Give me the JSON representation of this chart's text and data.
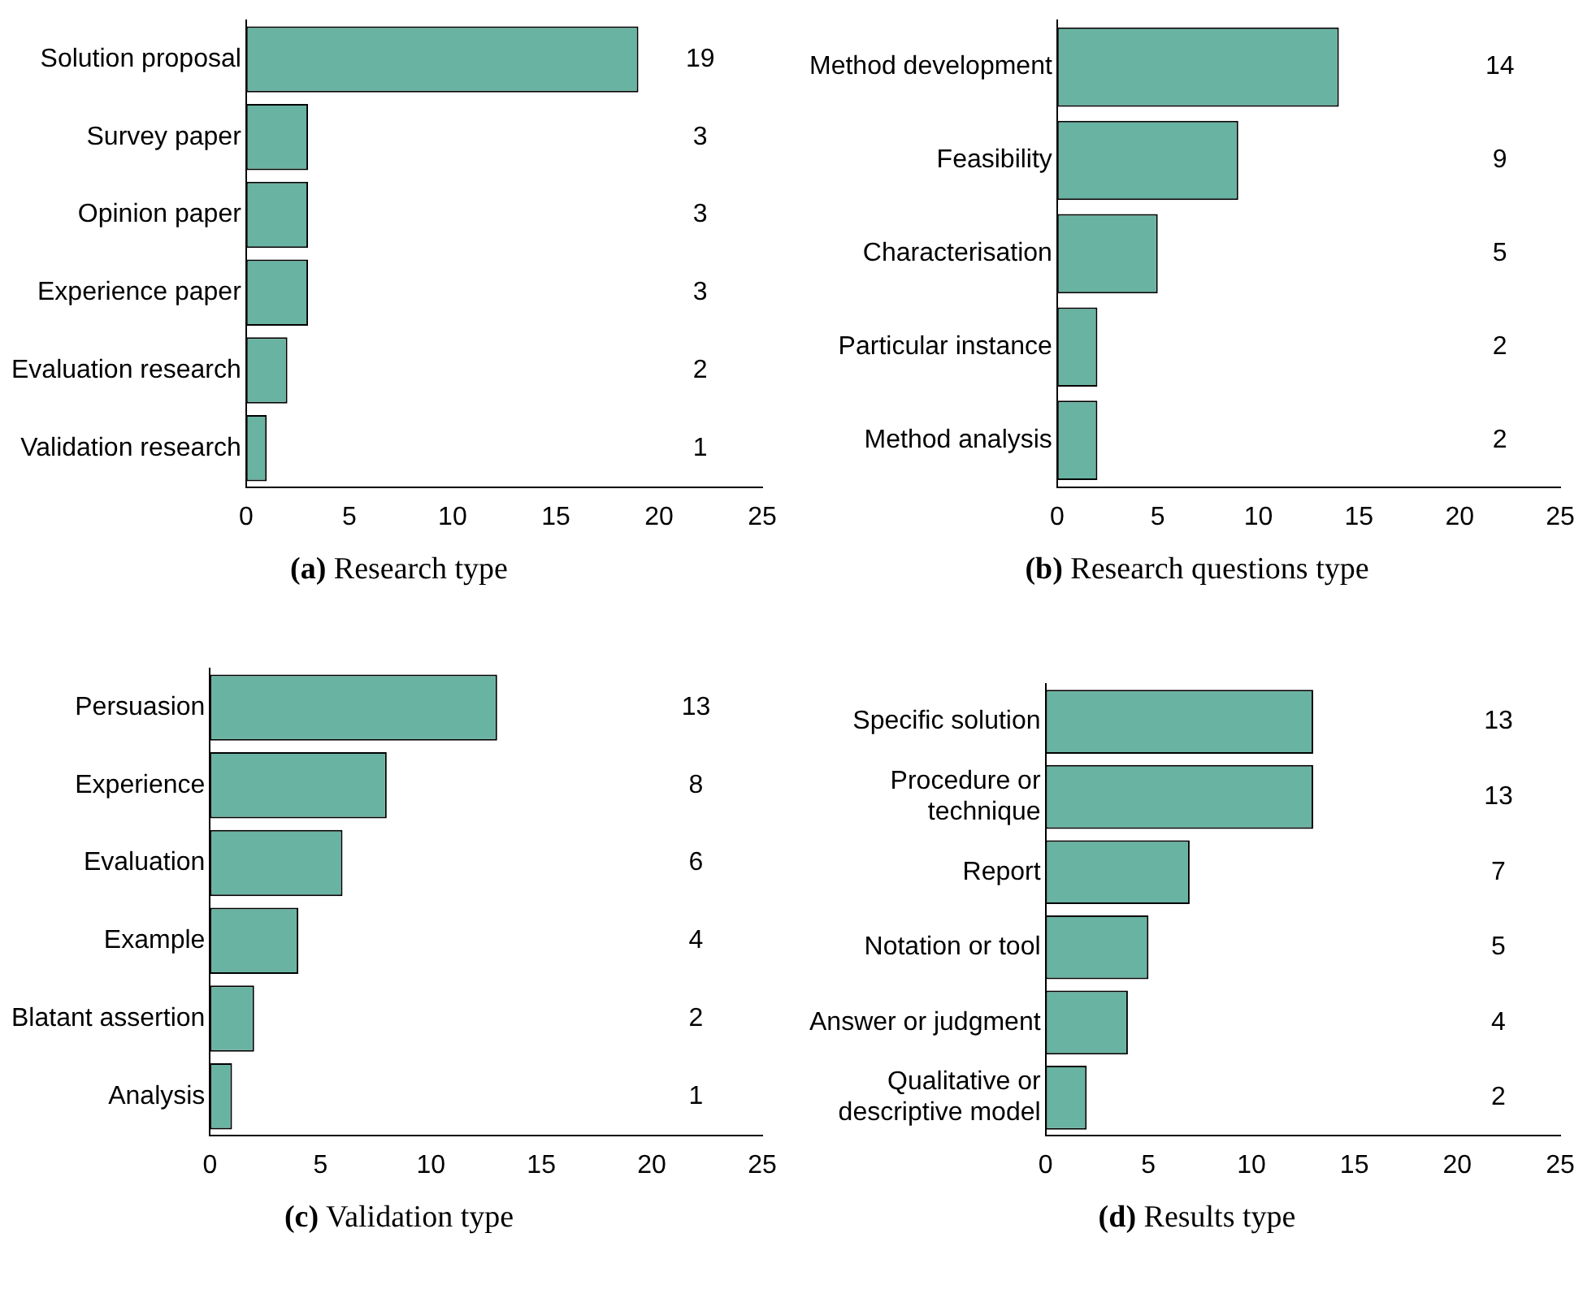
{
  "chart_data": [
    {
      "type": "bar",
      "orientation": "horizontal",
      "title": "(a) Research type",
      "categories": [
        "Solution proposal",
        "Survey paper",
        "Opinion paper",
        "Experience paper",
        "Evaluation research",
        "Validation research"
      ],
      "values": [
        19,
        3,
        3,
        3,
        2,
        1
      ],
      "color": "#69b3a2",
      "xlim": [
        0,
        25
      ],
      "xticks": [
        0,
        5,
        10,
        15,
        20,
        25
      ],
      "data_labels": true,
      "grid": false,
      "legend": false
    },
    {
      "type": "bar",
      "orientation": "horizontal",
      "title": "(b) Research questions type",
      "categories": [
        "Method development",
        "Feasibility",
        "Characterisation",
        "Particular instance",
        "Method analysis"
      ],
      "values": [
        14,
        9,
        5,
        2,
        2
      ],
      "color": "#69b3a2",
      "xlim": [
        0,
        25
      ],
      "xticks": [
        0,
        5,
        10,
        15,
        20,
        25
      ],
      "data_labels": true,
      "grid": false,
      "legend": false
    },
    {
      "type": "bar",
      "orientation": "horizontal",
      "title": "(c) Validation type",
      "categories": [
        "Persuasion",
        "Experience",
        "Evaluation",
        "Example",
        "Blatant assertion",
        "Analysis"
      ],
      "values": [
        13,
        8,
        6,
        4,
        2,
        1
      ],
      "color": "#69b3a2",
      "xlim": [
        0,
        25
      ],
      "xticks": [
        0,
        5,
        10,
        15,
        20,
        25
      ],
      "data_labels": true,
      "grid": false,
      "legend": false
    },
    {
      "type": "bar",
      "orientation": "horizontal",
      "title": "(d) Results type",
      "categories": [
        "Specific solution",
        "Procedure or technique",
        "Report",
        "Notation or tool",
        "Answer or judgment",
        "Qualitative or descriptive model"
      ],
      "values": [
        13,
        13,
        7,
        5,
        4,
        2
      ],
      "color": "#69b3a2",
      "xlim": [
        0,
        25
      ],
      "xticks": [
        0,
        5,
        10,
        15,
        20,
        25
      ],
      "data_labels": true,
      "grid": false,
      "legend": false
    }
  ]
}
